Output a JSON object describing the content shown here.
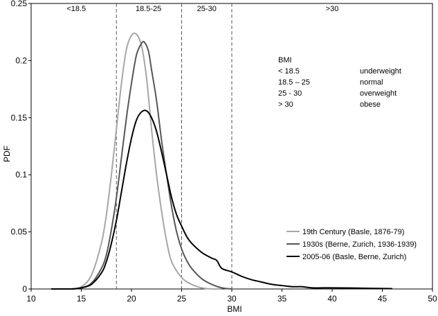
{
  "chart_data": {
    "type": "line",
    "xlabel": "BMI",
    "ylabel": "PDF",
    "xlim": [
      10,
      50
    ],
    "ylim": [
      0,
      0.25
    ],
    "x_ticks": [
      "10",
      "15",
      "20",
      "25",
      "30",
      "35",
      "40",
      "45",
      "50"
    ],
    "y_ticks": [
      "0",
      "0.05",
      "0.1",
      "0.15",
      "0.2",
      "0.25"
    ],
    "grid": false,
    "thresholds": [
      18.5,
      25,
      30
    ],
    "regions": [
      {
        "label": "<18.5",
        "x": 14.5
      },
      {
        "label": "18.5-25",
        "x": 21.7
      },
      {
        "label": "25-30",
        "x": 27.5
      },
      {
        "label": ">30",
        "x": 40
      }
    ],
    "bmi_table": {
      "header": "BMI",
      "rows": [
        {
          "range": "< 18.5",
          "category": "underweight"
        },
        {
          "range": "18.5 – 25",
          "category": "normal"
        },
        {
          "range": "25  - 30",
          "category": "overweight"
        },
        {
          "range": "> 30",
          "category": "obese"
        }
      ]
    },
    "legend_position": "bottom-right",
    "series": [
      {
        "name": "19th Century (Basle, 1876-79)",
        "color": "#a6a6a6",
        "x": [
          14,
          15,
          16,
          17,
          17.5,
          18,
          18.5,
          19,
          19.5,
          20,
          20.5,
          21,
          21.5,
          22,
          22.5,
          23,
          23.5,
          24,
          25,
          26,
          27,
          28,
          29
        ],
        "y": [
          0,
          0.002,
          0.012,
          0.04,
          0.065,
          0.1,
          0.14,
          0.18,
          0.21,
          0.222,
          0.223,
          0.213,
          0.185,
          0.14,
          0.1,
          0.068,
          0.042,
          0.024,
          0.01,
          0.004,
          0.001,
          0,
          0
        ]
      },
      {
        "name": "1930s (Berne, Zurich, 1936-1939)",
        "color": "#555555",
        "x": [
          14,
          15,
          16,
          17,
          17.5,
          18,
          18.5,
          19,
          19.5,
          20,
          20.5,
          21,
          21.3,
          21.7,
          22,
          22.5,
          23,
          23.5,
          24,
          24.5,
          25,
          25.5,
          26,
          27,
          28,
          29,
          30
        ],
        "y": [
          0,
          0.001,
          0.005,
          0.018,
          0.03,
          0.052,
          0.08,
          0.115,
          0.15,
          0.18,
          0.205,
          0.215,
          0.216,
          0.208,
          0.192,
          0.165,
          0.13,
          0.1,
          0.072,
          0.05,
          0.035,
          0.025,
          0.018,
          0.009,
          0.004,
          0.001,
          0
        ]
      },
      {
        "name": "2005-06 (Basle, Berne, Zurich)",
        "color": "#000000",
        "x": [
          12,
          14,
          15,
          16,
          17,
          17.5,
          18,
          18.5,
          19,
          19.5,
          20,
          20.5,
          21,
          21.5,
          22,
          22.5,
          23,
          23.5,
          24,
          24.5,
          25,
          25.5,
          26,
          27,
          28,
          28.5,
          29,
          30,
          31,
          32,
          32.5,
          33,
          34,
          35,
          36,
          37,
          38,
          40,
          42,
          44,
          46
        ],
        "y": [
          0,
          0,
          0.001,
          0.004,
          0.014,
          0.024,
          0.04,
          0.06,
          0.085,
          0.11,
          0.132,
          0.148,
          0.155,
          0.156,
          0.15,
          0.138,
          0.12,
          0.1,
          0.08,
          0.065,
          0.055,
          0.046,
          0.04,
          0.032,
          0.027,
          0.025,
          0.018,
          0.015,
          0.011,
          0.008,
          0.007,
          0.006,
          0.004,
          0.003,
          0.002,
          0.002,
          0.001,
          0.001,
          0.0008,
          0.0005,
          0.0003
        ]
      }
    ]
  }
}
